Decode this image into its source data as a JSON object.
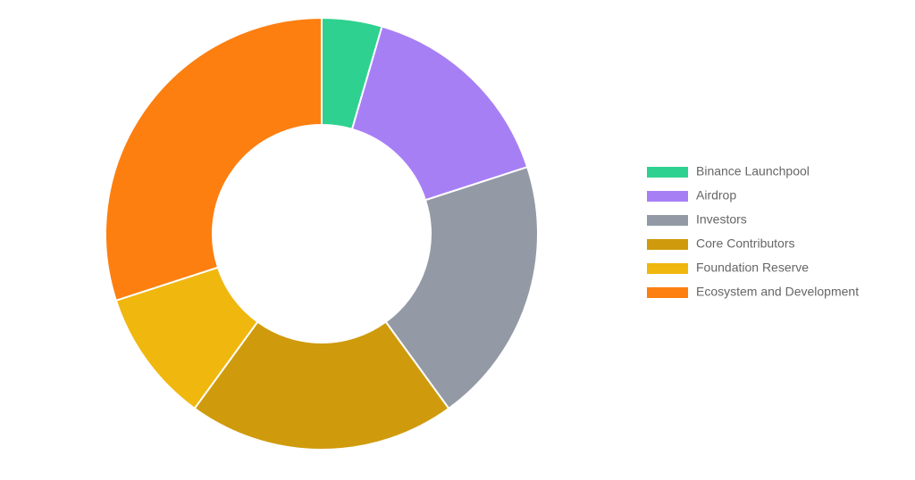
{
  "chart_data": {
    "type": "doughnut",
    "categories": [
      "Binance Launchpool",
      "Airdrop",
      "Investors",
      "Core Contributors",
      "Foundation Reserve",
      "Ecosystem and Development"
    ],
    "values": [
      4.5,
      15.5,
      20,
      20,
      10,
      30
    ],
    "colors": [
      "#2fd190",
      "#a77ff5",
      "#939aa5",
      "#cf9b0c",
      "#f0b70f",
      "#fd7f10"
    ],
    "legend": "right"
  }
}
